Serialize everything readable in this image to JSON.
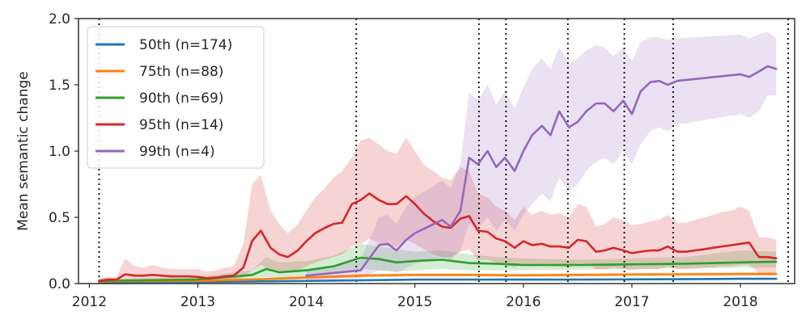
{
  "chart_data": {
    "type": "line",
    "title": "",
    "xlabel": "",
    "ylabel": "Mean semantic change",
    "xlim": [
      2011.9,
      2018.5
    ],
    "ylim": [
      0.0,
      2.0
    ],
    "x_ticks": [
      2012,
      2013,
      2014,
      2015,
      2016,
      2017,
      2018
    ],
    "x_tick_labels": [
      "2012",
      "2013",
      "2014",
      "2015",
      "2016",
      "2017",
      "2018"
    ],
    "y_ticks": [
      0.0,
      0.5,
      1.0,
      1.5,
      2.0
    ],
    "y_tick_labels": [
      "0.0",
      "0.5",
      "1.0",
      "1.5",
      "2.0"
    ],
    "grid": false,
    "legend_position": "top-left",
    "vlines": [
      2012.09,
      2014.46,
      2015.59,
      2015.84,
      2016.41,
      2016.93,
      2017.38,
      2018.44
    ],
    "series": [
      {
        "name": "50th (n=174)",
        "color": "#1f77b4",
        "x": [
          2012.09,
          2012.5,
          2013.0,
          2013.5,
          2014.0,
          2014.5,
          2015.0,
          2015.5,
          2016.0,
          2016.5,
          2017.0,
          2017.5,
          2018.0,
          2018.33
        ],
        "y": [
          0.01,
          0.012,
          0.013,
          0.016,
          0.02,
          0.025,
          0.03,
          0.03,
          0.03,
          0.03,
          0.032,
          0.033,
          0.036,
          0.036
        ],
        "lower": [
          0.005,
          0.007,
          0.008,
          0.01,
          0.014,
          0.018,
          0.022,
          0.022,
          0.022,
          0.022,
          0.024,
          0.025,
          0.027,
          0.027
        ],
        "upper": [
          0.015,
          0.017,
          0.018,
          0.022,
          0.026,
          0.032,
          0.038,
          0.038,
          0.038,
          0.038,
          0.04,
          0.041,
          0.045,
          0.045
        ]
      },
      {
        "name": "75th (n=88)",
        "color": "#ff7f0e",
        "x": [
          2012.09,
          2012.5,
          2013.0,
          2013.5,
          2014.0,
          2014.5,
          2015.0,
          2015.5,
          2016.0,
          2016.5,
          2017.0,
          2017.5,
          2018.0,
          2018.33
        ],
        "y": [
          0.015,
          0.018,
          0.02,
          0.03,
          0.045,
          0.06,
          0.065,
          0.065,
          0.062,
          0.065,
          0.068,
          0.07,
          0.072,
          0.072
        ],
        "lower": [
          0.008,
          0.01,
          0.012,
          0.02,
          0.033,
          0.047,
          0.052,
          0.052,
          0.05,
          0.052,
          0.055,
          0.056,
          0.058,
          0.058
        ],
        "upper": [
          0.022,
          0.026,
          0.028,
          0.04,
          0.057,
          0.073,
          0.078,
          0.078,
          0.075,
          0.078,
          0.081,
          0.084,
          0.086,
          0.086
        ]
      },
      {
        "name": "90th (n=69)",
        "color": "#2ca02c",
        "x": [
          2012.09,
          2012.5,
          2013.0,
          2013.5,
          2013.63,
          2013.75,
          2014.0,
          2014.25,
          2014.5,
          2014.67,
          2014.83,
          2015.0,
          2015.25,
          2015.5,
          2015.75,
          2016.0,
          2016.5,
          2017.0,
          2017.5,
          2018.0,
          2018.33
        ],
        "y": [
          0.02,
          0.025,
          0.03,
          0.065,
          0.11,
          0.085,
          0.1,
          0.13,
          0.195,
          0.185,
          0.16,
          0.17,
          0.18,
          0.155,
          0.15,
          0.14,
          0.14,
          0.145,
          0.15,
          0.16,
          0.165
        ],
        "lower": [
          0.01,
          0.012,
          0.015,
          0.03,
          0.05,
          0.04,
          0.05,
          0.07,
          0.11,
          0.1,
          0.09,
          0.1,
          0.11,
          0.1,
          0.1,
          0.1,
          0.105,
          0.11,
          0.115,
          0.12,
          0.12
        ],
        "upper": [
          0.035,
          0.04,
          0.05,
          0.1,
          0.2,
          0.16,
          0.17,
          0.21,
          0.3,
          0.28,
          0.26,
          0.24,
          0.25,
          0.22,
          0.2,
          0.19,
          0.18,
          0.19,
          0.2,
          0.25,
          0.24
        ]
      },
      {
        "name": "95th (n=14)",
        "color": "#d62728",
        "x": [
          2012.09,
          2012.17,
          2012.25,
          2012.33,
          2012.42,
          2012.5,
          2012.58,
          2012.67,
          2012.75,
          2012.83,
          2012.92,
          2013.0,
          2013.08,
          2013.17,
          2013.25,
          2013.33,
          2013.42,
          2013.5,
          2013.58,
          2013.67,
          2013.75,
          2013.83,
          2013.92,
          2014.0,
          2014.08,
          2014.17,
          2014.25,
          2014.33,
          2014.42,
          2014.5,
          2014.58,
          2014.67,
          2014.75,
          2014.83,
          2014.92,
          2015.0,
          2015.08,
          2015.17,
          2015.25,
          2015.33,
          2015.42,
          2015.5,
          2015.58,
          2015.67,
          2015.75,
          2015.83,
          2015.92,
          2016.0,
          2016.08,
          2016.17,
          2016.25,
          2016.33,
          2016.42,
          2016.5,
          2016.58,
          2016.67,
          2016.75,
          2016.83,
          2016.92,
          2017.0,
          2017.08,
          2017.17,
          2017.25,
          2017.33,
          2017.42,
          2017.5,
          2017.58,
          2017.67,
          2017.75,
          2017.83,
          2017.92,
          2018.0,
          2018.08,
          2018.17,
          2018.25,
          2018.33
        ],
        "y": [
          0.02,
          0.03,
          0.03,
          0.07,
          0.06,
          0.06,
          0.065,
          0.06,
          0.055,
          0.055,
          0.055,
          0.05,
          0.04,
          0.045,
          0.055,
          0.06,
          0.12,
          0.32,
          0.4,
          0.27,
          0.22,
          0.2,
          0.25,
          0.32,
          0.38,
          0.42,
          0.45,
          0.46,
          0.6,
          0.63,
          0.68,
          0.63,
          0.6,
          0.6,
          0.66,
          0.6,
          0.53,
          0.47,
          0.43,
          0.42,
          0.49,
          0.51,
          0.4,
          0.39,
          0.34,
          0.32,
          0.27,
          0.32,
          0.29,
          0.3,
          0.28,
          0.28,
          0.27,
          0.33,
          0.32,
          0.24,
          0.25,
          0.27,
          0.25,
          0.23,
          0.24,
          0.25,
          0.25,
          0.28,
          0.24,
          0.24,
          0.25,
          0.26,
          0.27,
          0.28,
          0.29,
          0.3,
          0.31,
          0.2,
          0.2,
          0.19
        ],
        "lower": [
          0.01,
          0.01,
          0.01,
          0.02,
          0.02,
          0.02,
          0.02,
          0.02,
          0.02,
          0.02,
          0.02,
          0.02,
          0.01,
          0.02,
          0.02,
          0.02,
          0.05,
          0.1,
          0.14,
          0.1,
          0.08,
          0.08,
          0.1,
          0.13,
          0.16,
          0.18,
          0.2,
          0.22,
          0.28,
          0.3,
          0.34,
          0.3,
          0.28,
          0.28,
          0.33,
          0.3,
          0.26,
          0.22,
          0.2,
          0.2,
          0.24,
          0.26,
          0.18,
          0.18,
          0.16,
          0.14,
          0.12,
          0.15,
          0.13,
          0.14,
          0.13,
          0.13,
          0.12,
          0.15,
          0.15,
          0.11,
          0.11,
          0.12,
          0.11,
          0.1,
          0.11,
          0.11,
          0.11,
          0.13,
          0.11,
          0.11,
          0.11,
          0.12,
          0.12,
          0.13,
          0.13,
          0.14,
          0.14,
          0.08,
          0.08,
          0.08
        ],
        "upper": [
          0.04,
          0.05,
          0.05,
          0.19,
          0.13,
          0.12,
          0.14,
          0.12,
          0.11,
          0.11,
          0.11,
          0.11,
          0.09,
          0.1,
          0.12,
          0.13,
          0.3,
          0.75,
          0.82,
          0.55,
          0.45,
          0.38,
          0.45,
          0.55,
          0.65,
          0.72,
          0.8,
          0.85,
          0.95,
          1.08,
          1.1,
          1.05,
          1.0,
          0.98,
          1.1,
          1.0,
          0.9,
          0.85,
          0.8,
          0.78,
          0.88,
          0.85,
          0.68,
          0.65,
          0.58,
          0.55,
          0.48,
          0.58,
          0.52,
          0.55,
          0.52,
          0.53,
          0.5,
          0.6,
          0.58,
          0.43,
          0.45,
          0.5,
          0.48,
          0.44,
          0.45,
          0.47,
          0.48,
          0.52,
          0.46,
          0.46,
          0.48,
          0.5,
          0.52,
          0.54,
          0.55,
          0.58,
          0.55,
          0.35,
          0.35,
          0.33
        ]
      },
      {
        "name": "99th (n=4)",
        "color": "#9467bd",
        "x": [
          2014.0,
          2014.25,
          2014.5,
          2014.67,
          2014.75,
          2014.83,
          2014.92,
          2015.0,
          2015.25,
          2015.33,
          2015.42,
          2015.5,
          2015.58,
          2015.67,
          2015.75,
          2015.83,
          2015.92,
          2016.0,
          2016.08,
          2016.17,
          2016.25,
          2016.33,
          2016.42,
          2016.5,
          2016.58,
          2016.67,
          2016.75,
          2016.83,
          2016.92,
          2017.0,
          2017.08,
          2017.17,
          2017.25,
          2017.33,
          2017.42,
          2018.0,
          2018.08,
          2018.17,
          2018.25,
          2018.33
        ],
        "y": [
          0.06,
          0.08,
          0.1,
          0.29,
          0.3,
          0.25,
          0.33,
          0.38,
          0.48,
          0.43,
          0.55,
          0.95,
          0.9,
          1.0,
          0.88,
          0.95,
          0.85,
          1.0,
          1.12,
          1.19,
          1.12,
          1.3,
          1.18,
          1.22,
          1.3,
          1.36,
          1.36,
          1.3,
          1.38,
          1.28,
          1.45,
          1.52,
          1.53,
          1.5,
          1.53,
          1.58,
          1.56,
          1.6,
          1.64,
          1.62
        ],
        "lower": [
          0.02,
          0.03,
          0.04,
          0.1,
          0.1,
          0.08,
          0.12,
          0.15,
          0.2,
          0.18,
          0.25,
          0.45,
          0.42,
          0.5,
          0.4,
          0.48,
          0.4,
          0.52,
          0.6,
          0.68,
          0.62,
          0.8,
          0.7,
          0.75,
          0.85,
          0.92,
          0.95,
          0.9,
          1.0,
          0.9,
          1.05,
          1.15,
          1.18,
          1.15,
          1.2,
          1.28,
          1.25,
          1.3,
          1.42,
          1.42
        ],
        "upper": [
          0.1,
          0.13,
          0.18,
          0.5,
          0.52,
          0.45,
          0.58,
          0.65,
          0.78,
          0.72,
          0.9,
          1.45,
          1.38,
          1.5,
          1.35,
          1.45,
          1.32,
          1.48,
          1.62,
          1.7,
          1.62,
          1.78,
          1.66,
          1.7,
          1.76,
          1.8,
          1.78,
          1.72,
          1.78,
          1.68,
          1.82,
          1.86,
          1.86,
          1.84,
          1.85,
          1.88,
          1.85,
          1.88,
          1.9,
          1.85
        ]
      }
    ]
  }
}
